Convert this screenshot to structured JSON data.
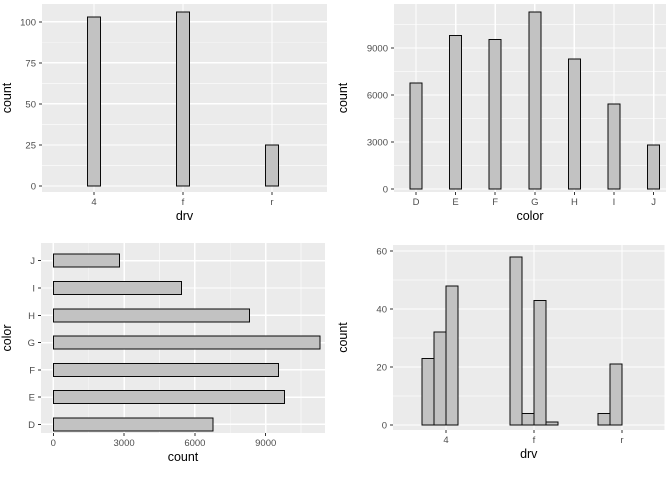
{
  "figure": {
    "kind": "ggplot2-style 2x2 bar chart grid",
    "rows": 2,
    "cols": 2
  },
  "colors": {
    "panel_bg": "#EBEBEB",
    "grid_major": "#FFFFFF",
    "grid_minor": "#F5F5F5",
    "bar_fill": "#C2C2C2",
    "bar_stroke": "#0A0A0A",
    "tick_mark": "#333333",
    "tick_label": "#4D4D4D",
    "axis_title": "#000000"
  },
  "chart_data": [
    {
      "type": "bar",
      "orientation": "vertical",
      "title": "",
      "xlabel": "drv",
      "ylabel": "count",
      "categories": [
        "4",
        "f",
        "r"
      ],
      "values": [
        103,
        106,
        25
      ],
      "yticks": [
        0,
        25,
        50,
        75,
        100
      ],
      "ytick_labels": [
        "0",
        "25",
        "50",
        "75",
        "100"
      ],
      "ylim": [
        0,
        111
      ],
      "grid": "major+minor",
      "legend": "none"
    },
    {
      "type": "bar",
      "orientation": "vertical",
      "title": "",
      "xlabel": "color",
      "ylabel": "count",
      "categories": [
        "D",
        "E",
        "F",
        "G",
        "H",
        "I",
        "J"
      ],
      "values": [
        6775,
        9797,
        9542,
        11292,
        8304,
        5422,
        2808
      ],
      "yticks": [
        0,
        3000,
        6000,
        9000
      ],
      "ytick_labels": [
        "0",
        "3000",
        "6000",
        "9000"
      ],
      "ylim": [
        0,
        11860
      ],
      "grid": "major+minor",
      "legend": "none"
    },
    {
      "type": "bar",
      "orientation": "horizontal",
      "title": "",
      "xlabel": "count",
      "ylabel": "color",
      "categories": [
        "J",
        "I",
        "H",
        "G",
        "F",
        "E",
        "D"
      ],
      "values": [
        2808,
        5422,
        8304,
        11292,
        9542,
        9797,
        6775
      ],
      "xticks": [
        0,
        3000,
        6000,
        9000
      ],
      "xtick_labels": [
        "0",
        "3000",
        "6000",
        "9000"
      ],
      "xlim": [
        0,
        11860
      ],
      "grid": "major+minor",
      "legend": "none"
    },
    {
      "type": "grouped-bar",
      "orientation": "vertical",
      "title": "",
      "xlabel": "drv",
      "ylabel": "count",
      "categories": [
        "4",
        "f",
        "r"
      ],
      "values_by_category": [
        [
          23,
          32,
          48
        ],
        [
          58,
          4,
          43,
          1
        ],
        [
          4,
          21
        ]
      ],
      "yticks": [
        0,
        20,
        40,
        60
      ],
      "ytick_labels": [
        "0",
        "20",
        "40",
        "60"
      ],
      "ylim": [
        0,
        61
      ],
      "grid": "major+minor",
      "legend": "none"
    }
  ]
}
